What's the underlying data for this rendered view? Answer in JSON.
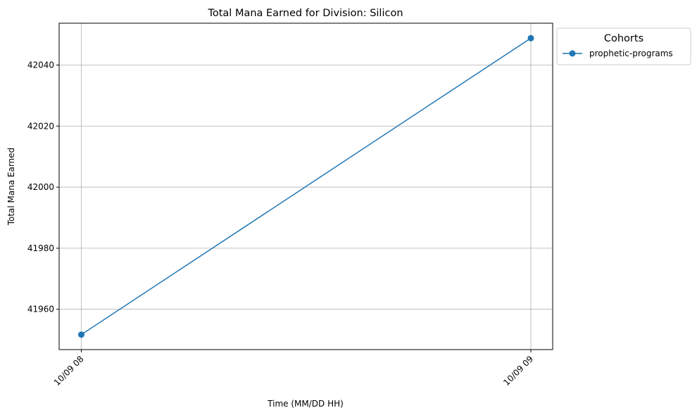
{
  "chart_data": {
    "type": "line",
    "title": "Total Mana Earned for Division: Silicon",
    "xlabel": "Time (MM/DD HH)",
    "ylabel": "Total Mana Earned",
    "x": [
      "10/09 08",
      "10/09 09"
    ],
    "series": [
      {
        "name": "prophetic-programs",
        "values": [
          41951.7,
          42048.8
        ],
        "color": "#1f77b4",
        "marker": "circle"
      }
    ],
    "yticks": [
      41960,
      41980,
      42000,
      42020,
      42040
    ],
    "ylim": [
      41946.8,
      42053.7
    ],
    "grid": true,
    "legend": {
      "title": "Cohorts",
      "placement": "outside-top-right"
    }
  }
}
